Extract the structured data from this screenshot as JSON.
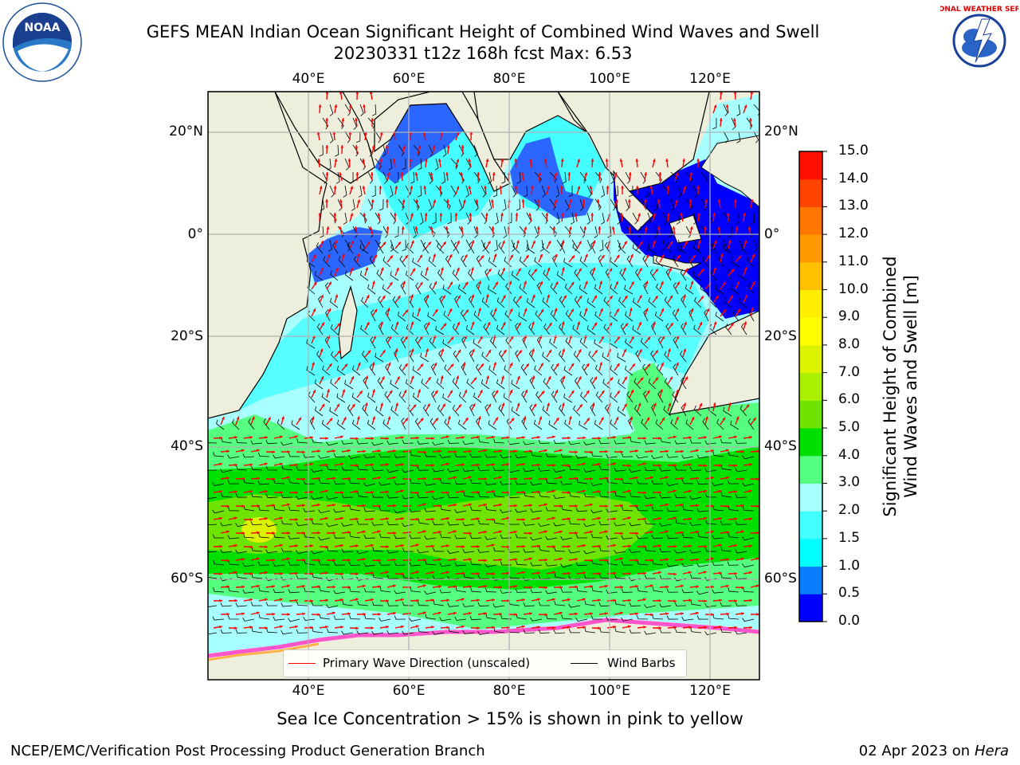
{
  "header": {
    "title_line1": "GEFS MEAN Indian Ocean Significant Height of Combined Wind Waves and Swell",
    "title_line2": "20230331 t12z 168h fcst   Max: 6.53"
  },
  "logos": {
    "left": {
      "name": "noaa-logo",
      "text": "NOAA"
    },
    "right": {
      "name": "nws-logo",
      "text": "NATIONAL WEATHER SERVICE"
    }
  },
  "map": {
    "lon_labels_top": [
      "40°E",
      "60°E",
      "80°E",
      "100°E",
      "120°E"
    ],
    "lon_labels_bottom": [
      "40°E",
      "60°E",
      "80°E",
      "100°E",
      "120°E"
    ],
    "lat_labels_left": [
      "20°N",
      "0°",
      "20°S",
      "40°S",
      "60°S"
    ],
    "lat_labels_right": [
      "20°N",
      "0°",
      "20°S",
      "40°S",
      "60°S"
    ],
    "extent": {
      "lon": [
        20,
        130
      ],
      "lat": [
        -75,
        27
      ]
    },
    "colors": {
      "land": "#eeeedd",
      "grid": "#b0b0b0",
      "wave_arrow": "#ff0000",
      "wind_barb": "#000000"
    }
  },
  "legend": {
    "items": [
      {
        "label": "Primary Wave Direction (unscaled)",
        "color": "#ff0000"
      },
      {
        "label": "Wind Barbs",
        "color": "#000000"
      }
    ]
  },
  "colorbar": {
    "label_line1": "Significant Height of Combined",
    "label_line2": "Wind Waves and Swell [m]",
    "ticks": [
      "0.0",
      "0.5",
      "1.0",
      "1.5",
      "2.0",
      "3.0",
      "4.0",
      "5.0",
      "6.0",
      "7.0",
      "8.0",
      "9.0",
      "10.0",
      "11.0",
      "12.0",
      "13.0",
      "14.0",
      "15.0"
    ],
    "colors": [
      "#0000ff",
      "#0a7dff",
      "#00ffff",
      "#44ffff",
      "#a8ffff",
      "#55ff7f",
      "#00e000",
      "#6ee400",
      "#aaee00",
      "#dcf200",
      "#ffff00",
      "#ffee00",
      "#ffc000",
      "#ff9900",
      "#ff7700",
      "#ff4400",
      "#ff1100"
    ]
  },
  "footer": {
    "note": "Sea Ice Concentration > 15% is shown in pink to yellow",
    "left": "NCEP/EMC/Verification Post Processing Product Generation Branch",
    "right_prefix": "02 Apr 2023 on ",
    "right_italic": "Hera"
  }
}
